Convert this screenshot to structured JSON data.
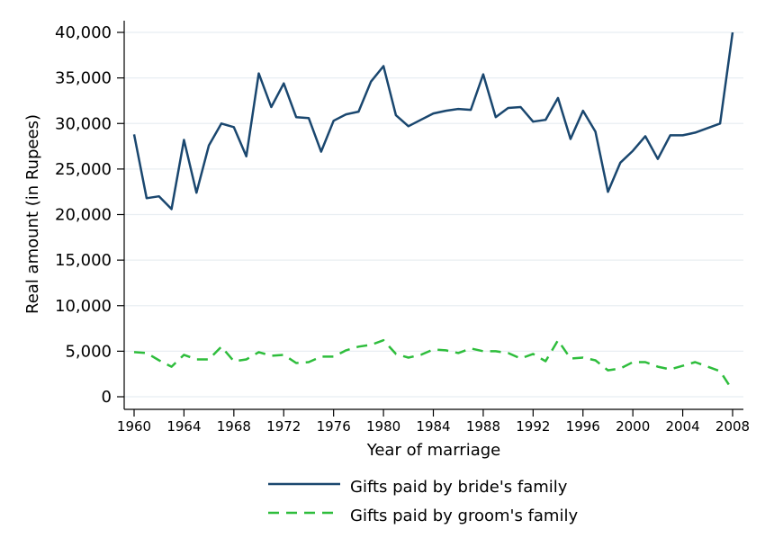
{
  "chart_data": {
    "type": "line",
    "title": "",
    "xlabel": "Year of marriage",
    "ylabel": "Real amount (in Rupees)",
    "xlim": [
      1960,
      2008
    ],
    "ylim": [
      0,
      40000
    ],
    "x_ticks": [
      1960,
      1964,
      1968,
      1972,
      1976,
      1980,
      1984,
      1988,
      1992,
      1996,
      2000,
      2004,
      2008
    ],
    "y_ticks": [
      0,
      5000,
      10000,
      15000,
      20000,
      25000,
      30000,
      35000,
      40000
    ],
    "y_tick_labels": [
      "0",
      "5,000",
      "10,000",
      "15,000",
      "20,000",
      "25,000",
      "30,000",
      "35,000",
      "40,000"
    ],
    "grid": "horizontal",
    "legend_position": "bottom",
    "x": [
      1960,
      1961,
      1962,
      1963,
      1964,
      1965,
      1966,
      1967,
      1968,
      1969,
      1970,
      1971,
      1972,
      1973,
      1974,
      1975,
      1976,
      1977,
      1978,
      1979,
      1980,
      1981,
      1982,
      1983,
      1984,
      1985,
      1986,
      1987,
      1988,
      1989,
      1990,
      1991,
      1992,
      1993,
      1994,
      1995,
      1996,
      1997,
      1998,
      1999,
      2000,
      2001,
      2002,
      2003,
      2004,
      2005,
      2007,
      2008
    ],
    "series": [
      {
        "name": "Gifts paid by bride's family",
        "color": "#1a476f",
        "style": "solid",
        "values": [
          28800,
          21800,
          22000,
          20600,
          28200,
          22400,
          27600,
          30000,
          29600,
          26400,
          35500,
          31800,
          34400,
          30700,
          30600,
          26900,
          30300,
          31000,
          31300,
          34600,
          36300,
          30900,
          29700,
          30400,
          31100,
          31400,
          31600,
          31500,
          35400,
          30700,
          31700,
          31800,
          30200,
          30400,
          32800,
          28300,
          31400,
          29100,
          22500,
          25700,
          27000,
          28600,
          26100,
          28700,
          28700,
          29000,
          30000,
          40000
        ]
      },
      {
        "name": "Gifts paid by groom's family",
        "color": "#2ebd3c",
        "style": "dashed",
        "values": [
          4900,
          4800,
          4000,
          3300,
          4600,
          4100,
          4100,
          5500,
          3900,
          4100,
          4900,
          4500,
          4600,
          3700,
          3800,
          4400,
          4400,
          5100,
          5500,
          5700,
          6200,
          4700,
          4300,
          4600,
          5200,
          5100,
          4800,
          5300,
          5000,
          5000,
          4800,
          4200,
          4700,
          3900,
          6200,
          4200,
          4300,
          4000,
          2900,
          3100,
          3800,
          3800,
          3300,
          3000,
          3400,
          3800,
          2800,
          700
        ]
      }
    ]
  }
}
